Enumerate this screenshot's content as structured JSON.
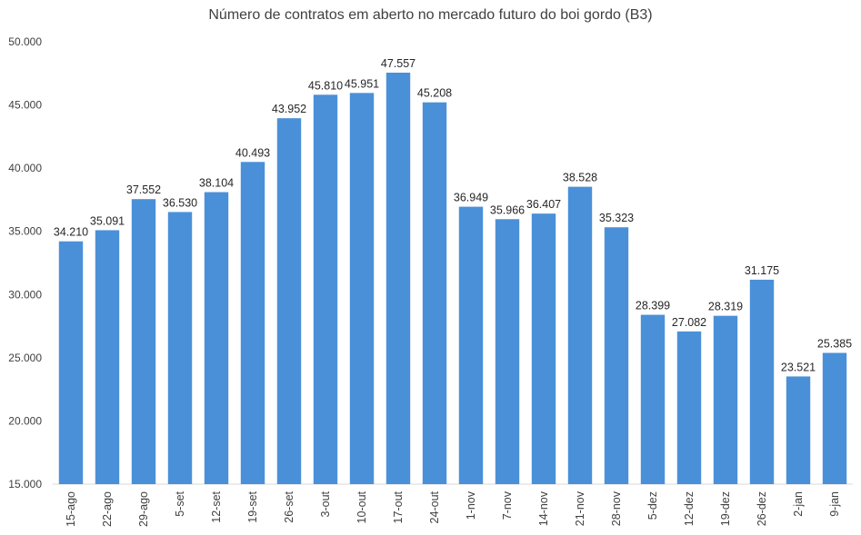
{
  "chart_data": {
    "type": "bar",
    "title": "Número de contratos em aberto no mercado futuro do boi gordo (B3)",
    "categories": [
      "15-ago",
      "22-ago",
      "29-ago",
      "5-set",
      "12-set",
      "19-set",
      "26-set",
      "3-out",
      "10-out",
      "17-out",
      "24-out",
      "1-nov",
      "7-nov",
      "14-nov",
      "21-nov",
      "28-nov",
      "5-dez",
      "12-dez",
      "19-dez",
      "26-dez",
      "2-jan",
      "9-jan"
    ],
    "values": [
      34210,
      35091,
      37552,
      36530,
      38104,
      40493,
      43952,
      45810,
      45951,
      47557,
      45208,
      36949,
      35966,
      36407,
      38528,
      35323,
      28399,
      27082,
      28319,
      31175,
      23521,
      25385
    ],
    "value_labels": [
      "34.210",
      "35.091",
      "37.552",
      "36.530",
      "38.104",
      "40.493",
      "43.952",
      "45.810",
      "45.951",
      "47.557",
      "45.208",
      "36.949",
      "35.966",
      "36.407",
      "38.528",
      "35.323",
      "28.399",
      "27.082",
      "28.319",
      "31.175",
      "23.521",
      "25.385"
    ],
    "ylim": [
      15000,
      50000
    ],
    "y_ticks": [
      15000,
      20000,
      25000,
      30000,
      35000,
      40000,
      45000,
      50000
    ],
    "y_tick_labels": [
      "15.000",
      "20.000",
      "25.000",
      "30.000",
      "35.000",
      "40.000",
      "45.000",
      "50.000"
    ],
    "grid": false,
    "legend": "none",
    "bar_color": "#4a90d9",
    "axis_color": "#d9d9d9"
  }
}
